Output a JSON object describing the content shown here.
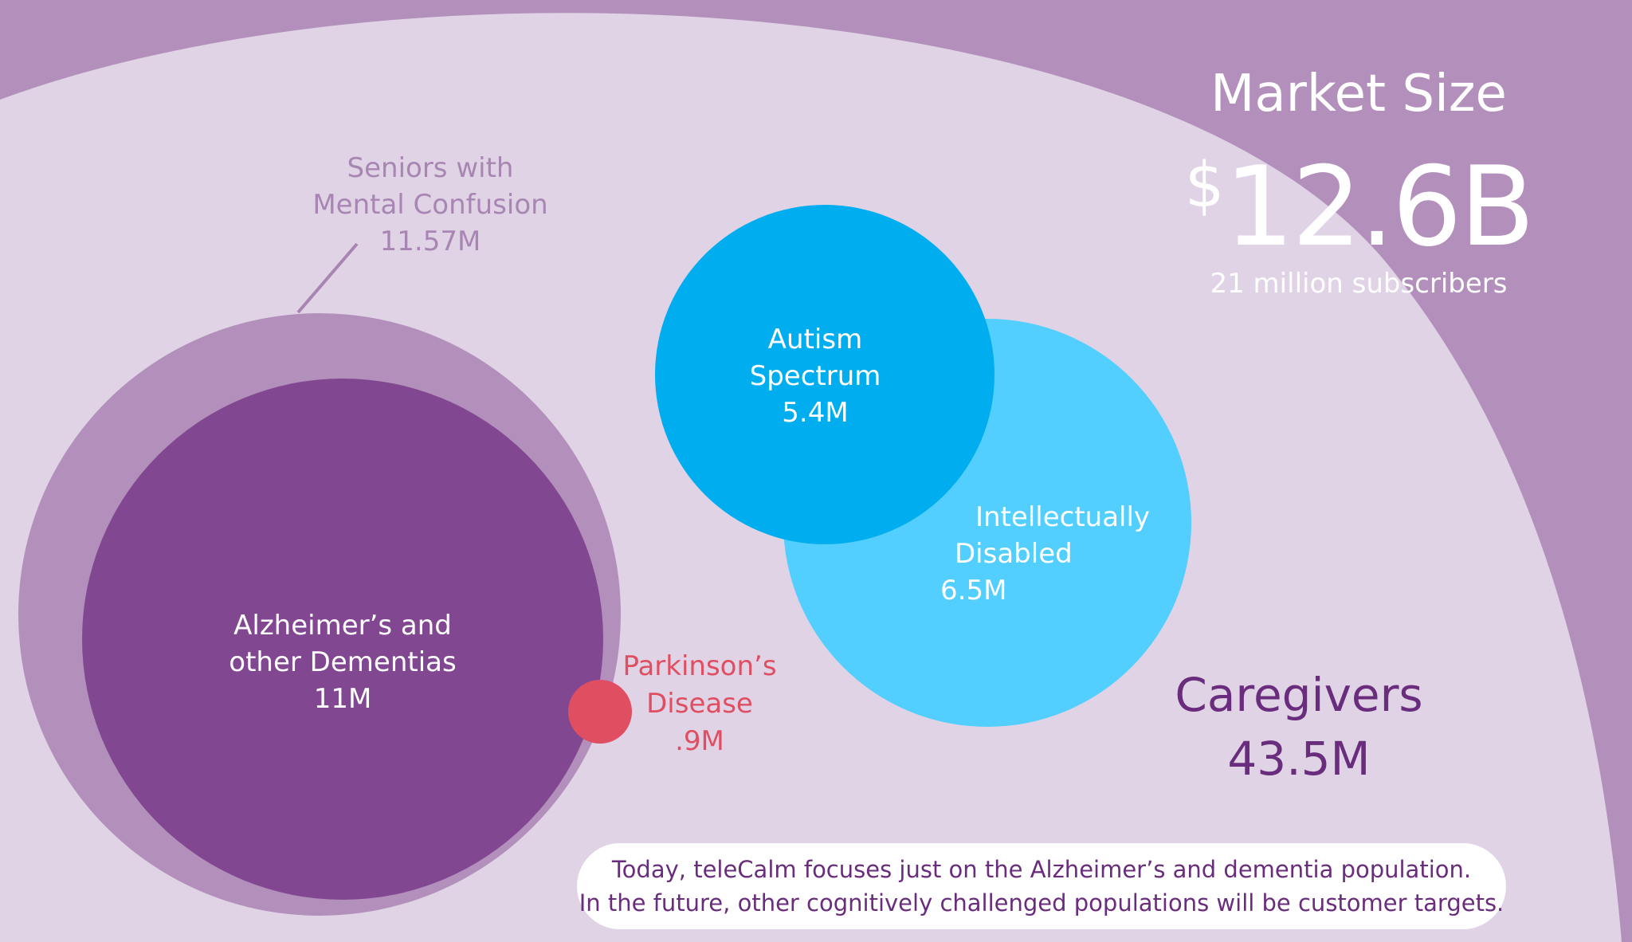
{
  "market": {
    "title": "Market Size",
    "currency": "$",
    "value": "12.6B",
    "subscribers": "21 million subscribers"
  },
  "segments": {
    "seniors": {
      "line1": "Seniors with",
      "line2": "Mental Confusion",
      "value": "11.57M"
    },
    "alzheimers": {
      "line1": "Alzheimer’s and",
      "line2": "other Dementias",
      "value": "11M"
    },
    "parkinsons": {
      "line1": "Parkinson’s",
      "line2": "Disease",
      "value": ".9M"
    },
    "autism": {
      "line1": "Autism",
      "line2": "Spectrum",
      "value": "5.4M"
    },
    "intellectual": {
      "line1": "Intellectually",
      "line2": "Disabled",
      "value": "6.5M"
    },
    "caregivers": {
      "line1": "Caregivers",
      "value": "43.5M"
    }
  },
  "note": {
    "line1": "Today, teleCalm focuses just on the Alzheimer’s and dementia population.",
    "line2": "In the future, other cognitively challenged populations will be customer targets."
  },
  "colors": {
    "background": "#b290bb",
    "caregivers_area": "#e0d3e5",
    "seniors": "#b290bb",
    "alzheimers": "#824791",
    "parkinsons": "#e04e62",
    "autism": "#00aeef",
    "intellectual": "#52cffe",
    "text_dark_purple": "#6a2c7c"
  }
}
